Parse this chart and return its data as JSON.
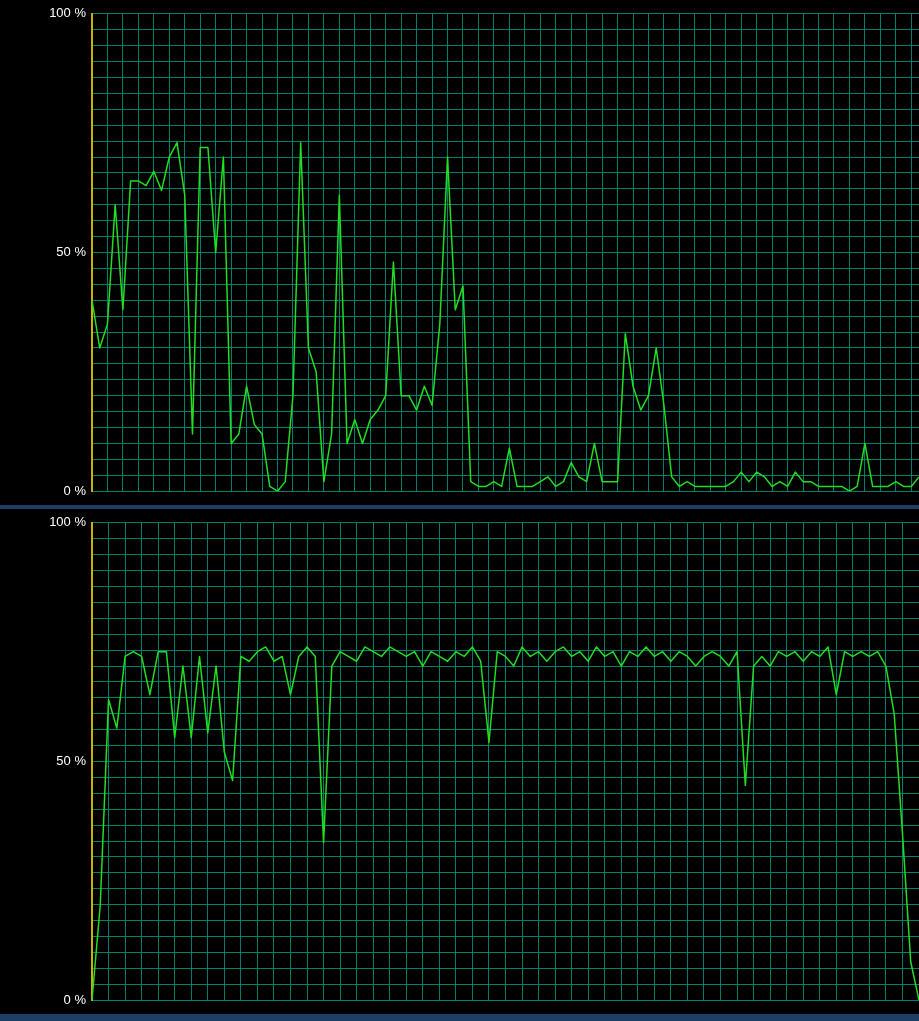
{
  "chart_data": [
    {
      "type": "line",
      "tick_labels": "y",
      "grid": true,
      "legend": false,
      "marker": "none",
      "line_style": "solid",
      "ylim": [
        0,
        100
      ],
      "yticks": [
        {
          "value": 0,
          "label": "0 %"
        },
        {
          "value": 3.33,
          "label": null
        },
        {
          "value": 6.67,
          "label": null
        },
        {
          "value": 10,
          "label": null
        },
        {
          "value": 13.33,
          "label": null
        },
        {
          "value": 16.67,
          "label": null
        },
        {
          "value": 20,
          "label": null
        },
        {
          "value": 23.33,
          "label": null
        },
        {
          "value": 26.67,
          "label": null
        },
        {
          "value": 30,
          "label": null
        },
        {
          "value": 33.33,
          "label": null
        },
        {
          "value": 36.67,
          "label": null
        },
        {
          "value": 40,
          "label": null
        },
        {
          "value": 43.33,
          "label": null
        },
        {
          "value": 46.67,
          "label": null
        },
        {
          "value": 50,
          "label": "50 %"
        },
        {
          "value": 53.33,
          "label": null
        },
        {
          "value": 56.67,
          "label": null
        },
        {
          "value": 60,
          "label": null
        },
        {
          "value": 63.33,
          "label": null
        },
        {
          "value": 66.67,
          "label": null
        },
        {
          "value": 70,
          "label": null
        },
        {
          "value": 73.33,
          "label": null
        },
        {
          "value": 76.67,
          "label": null
        },
        {
          "value": 80,
          "label": null
        },
        {
          "value": 83.33,
          "label": null
        },
        {
          "value": 86.67,
          "label": null
        },
        {
          "value": 90,
          "label": null
        },
        {
          "value": 93.33,
          "label": null
        },
        {
          "value": 96.67,
          "label": null
        },
        {
          "value": 100,
          "label": "100 %"
        }
      ],
      "categories": [
        null,
        null,
        null,
        null,
        null,
        null,
        null,
        null,
        null,
        null,
        null,
        null,
        null,
        null,
        null,
        null,
        null,
        null,
        null,
        null,
        null,
        null,
        null,
        null,
        null,
        null,
        null,
        null,
        null,
        null,
        null,
        null,
        null,
        null,
        null,
        null,
        null,
        null,
        null,
        null,
        null,
        null,
        null,
        null,
        null,
        null,
        null,
        null,
        null,
        null,
        null,
        null,
        null,
        null,
        null,
        null,
        null,
        null,
        null,
        null,
        null,
        null,
        null,
        null,
        null,
        null,
        null,
        null,
        null,
        null,
        null,
        null,
        null,
        null,
        null,
        null,
        null,
        null,
        null,
        null,
        null,
        null,
        null,
        null,
        null,
        null,
        null,
        null,
        null,
        null,
        null,
        null,
        null,
        null,
        null,
        null,
        null,
        null,
        null,
        null,
        null,
        null,
        null,
        null,
        null,
        null,
        null,
        null
      ],
      "series": [
        {
          "color": "#22dd22",
          "values": [
            40,
            30,
            35,
            60,
            38,
            65,
            65,
            64,
            67,
            63,
            70,
            73,
            62,
            12,
            72,
            72,
            50,
            70,
            10,
            12,
            22,
            14,
            12,
            1,
            0,
            2,
            20,
            73,
            30,
            25,
            2,
            12,
            62,
            10,
            15,
            10,
            15,
            17,
            20,
            48,
            20,
            20,
            17,
            22,
            18,
            35,
            70,
            38,
            43,
            2,
            1,
            1,
            2,
            1,
            9,
            1,
            1,
            1,
            2,
            3,
            1,
            2,
            6,
            3,
            2,
            10,
            2,
            2,
            2,
            33,
            22,
            17,
            20,
            30,
            18,
            3,
            1,
            2,
            1,
            1,
            1,
            1,
            1,
            2,
            4,
            2,
            4,
            3,
            1,
            2,
            1,
            4,
            2,
            2,
            1,
            1,
            1,
            1,
            0,
            1,
            10,
            1,
            1,
            1,
            2,
            1,
            1,
            3
          ]
        }
      ]
    },
    {
      "type": "line",
      "tick_labels": "y",
      "grid": true,
      "legend": false,
      "marker": "none",
      "line_style": "solid",
      "ylim": [
        0,
        100
      ],
      "yticks": [
        {
          "value": 0,
          "label": "0 %"
        },
        {
          "value": 3.33,
          "label": null
        },
        {
          "value": 6.67,
          "label": null
        },
        {
          "value": 10,
          "label": null
        },
        {
          "value": 13.33,
          "label": null
        },
        {
          "value": 16.67,
          "label": null
        },
        {
          "value": 20,
          "label": null
        },
        {
          "value": 23.33,
          "label": null
        },
        {
          "value": 26.67,
          "label": null
        },
        {
          "value": 30,
          "label": null
        },
        {
          "value": 33.33,
          "label": null
        },
        {
          "value": 36.67,
          "label": null
        },
        {
          "value": 40,
          "label": null
        },
        {
          "value": 43.33,
          "label": null
        },
        {
          "value": 46.67,
          "label": null
        },
        {
          "value": 50,
          "label": "50 %"
        },
        {
          "value": 53.33,
          "label": null
        },
        {
          "value": 56.67,
          "label": null
        },
        {
          "value": 60,
          "label": null
        },
        {
          "value": 63.33,
          "label": null
        },
        {
          "value": 66.67,
          "label": null
        },
        {
          "value": 70,
          "label": null
        },
        {
          "value": 73.33,
          "label": null
        },
        {
          "value": 76.67,
          "label": null
        },
        {
          "value": 80,
          "label": null
        },
        {
          "value": 83.33,
          "label": null
        },
        {
          "value": 86.67,
          "label": null
        },
        {
          "value": 90,
          "label": null
        },
        {
          "value": 93.33,
          "label": null
        },
        {
          "value": 96.67,
          "label": null
        },
        {
          "value": 100,
          "label": "100 %"
        }
      ],
      "categories": [
        null,
        null,
        null,
        null,
        null,
        null,
        null,
        null,
        null,
        null,
        null,
        null,
        null,
        null,
        null,
        null,
        null,
        null,
        null,
        null,
        null,
        null,
        null,
        null,
        null,
        null,
        null,
        null,
        null,
        null,
        null,
        null,
        null,
        null,
        null,
        null,
        null,
        null,
        null,
        null,
        null,
        null,
        null,
        null,
        null,
        null,
        null,
        null,
        null,
        null,
        null,
        null,
        null,
        null,
        null,
        null,
        null,
        null,
        null,
        null,
        null,
        null,
        null,
        null,
        null,
        null,
        null,
        null,
        null,
        null,
        null,
        null,
        null,
        null,
        null,
        null,
        null,
        null,
        null,
        null,
        null,
        null,
        null,
        null,
        null,
        null,
        null,
        null,
        null,
        null,
        null,
        null,
        null,
        null,
        null,
        null,
        null,
        null,
        null,
        null,
        null
      ],
      "series": [
        {
          "color": "#22dd22",
          "values": [
            0,
            20,
            63,
            57,
            72,
            73,
            72,
            64,
            73,
            73,
            55,
            70,
            55,
            72,
            56,
            70,
            52,
            46,
            72,
            71,
            73,
            74,
            71,
            72,
            64,
            72,
            74,
            72,
            33,
            70,
            73,
            72,
            71,
            74,
            73,
            72,
            74,
            73,
            72,
            73,
            70,
            73,
            72,
            71,
            73,
            72,
            74,
            71,
            54,
            73,
            72,
            70,
            74,
            72,
            73,
            71,
            73,
            74,
            72,
            73,
            71,
            74,
            72,
            73,
            70,
            73,
            72,
            74,
            72,
            73,
            71,
            73,
            72,
            70,
            72,
            73,
            72,
            70,
            73,
            45,
            70,
            72,
            70,
            73,
            72,
            73,
            71,
            73,
            72,
            74,
            64,
            73,
            72,
            73,
            72,
            73,
            70,
            60,
            35,
            8,
            0
          ]
        }
      ]
    }
  ]
}
